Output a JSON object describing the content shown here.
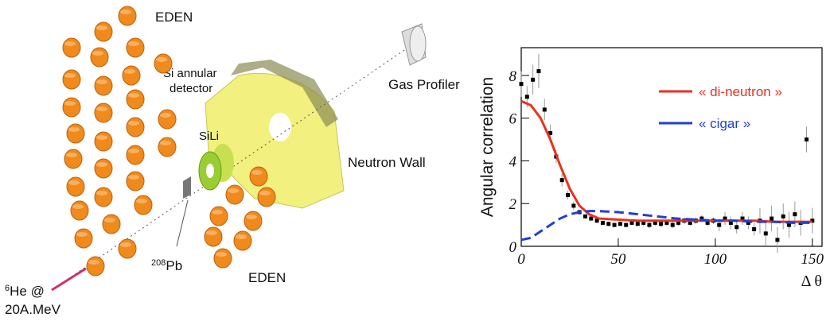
{
  "diagram": {
    "labels": {
      "eden_top": "EDEN",
      "si_annular": "Si annular",
      "detector": "detector",
      "sili": "SiLi",
      "gas_profiler": "Gas Profiler",
      "neutron_wall": "Neutron Wall",
      "pb_mass": "208",
      "pb": "Pb",
      "eden_bottom": "EDEN",
      "he_mass": "6",
      "he": "He @",
      "energy": "20A.MeV"
    }
  },
  "chart_data": {
    "type": "line",
    "y_label": "Angular correlation",
    "x_label": "Δ θ",
    "xlim": [
      0,
      155
    ],
    "ylim": [
      0,
      9.3
    ],
    "xticks": [
      0,
      50,
      100,
      150
    ],
    "yticks": [
      0,
      2,
      4,
      6,
      8
    ],
    "x": [
      0,
      5,
      10,
      15,
      20,
      25,
      30,
      35,
      40,
      50,
      60,
      70,
      80,
      90,
      100,
      110,
      120,
      130,
      140,
      150
    ],
    "series": [
      {
        "name": "« di-neutron »",
        "color": "#e8321e",
        "dash": false,
        "values": [
          6.8,
          6.6,
          6.0,
          5.0,
          3.8,
          2.7,
          1.9,
          1.5,
          1.3,
          1.25,
          1.2,
          1.2,
          1.2,
          1.2,
          1.2,
          1.2,
          1.2,
          1.15,
          1.15,
          1.15
        ]
      },
      {
        "name": "« cigar »",
        "color": "#1f3fd6",
        "dash": true,
        "values": [
          0.3,
          0.4,
          0.7,
          1.0,
          1.3,
          1.5,
          1.6,
          1.65,
          1.65,
          1.6,
          1.5,
          1.4,
          1.3,
          1.25,
          1.2,
          1.2,
          1.15,
          1.15,
          1.1,
          1.1
        ]
      }
    ],
    "points": {
      "color": "#000000",
      "x": [
        0,
        3,
        6,
        9,
        12,
        15,
        18,
        21,
        24,
        27,
        30,
        33,
        36,
        39,
        42,
        45,
        48,
        51,
        54,
        57,
        60,
        63,
        66,
        69,
        72,
        75,
        78,
        81,
        84,
        87,
        90,
        93,
        96,
        99,
        102,
        105,
        108,
        111,
        114,
        117,
        120,
        123,
        126,
        129,
        132,
        135,
        138,
        141,
        144,
        147,
        150
      ],
      "values": [
        7.6,
        7.0,
        7.8,
        8.2,
        6.4,
        5.3,
        4.2,
        3.1,
        2.4,
        1.9,
        1.6,
        1.4,
        1.3,
        1.2,
        1.1,
        1.05,
        1.0,
        1.05,
        1.0,
        1.1,
        1.05,
        1.1,
        1.0,
        1.1,
        1.05,
        1.1,
        1.0,
        1.1,
        1.2,
        1.1,
        1.2,
        1.3,
        1.1,
        1.2,
        1.0,
        1.3,
        1.1,
        0.9,
        1.3,
        1.1,
        0.8,
        1.2,
        0.6,
        1.3,
        0.3,
        1.4,
        1.0,
        1.5,
        1.1,
        5.0,
        1.2
      ],
      "errors": [
        0.6,
        0.5,
        0.7,
        0.8,
        0.5,
        0.4,
        0.3,
        0.3,
        0.2,
        0.2,
        0.1,
        0.1,
        0.1,
        0.1,
        0.1,
        0.1,
        0.1,
        0.1,
        0.1,
        0.1,
        0.1,
        0.15,
        0.15,
        0.15,
        0.15,
        0.15,
        0.15,
        0.15,
        0.15,
        0.15,
        0.15,
        0.15,
        0.15,
        0.15,
        0.3,
        0.3,
        0.3,
        0.3,
        0.3,
        0.3,
        0.3,
        0.6,
        0.6,
        0.6,
        0.6,
        0.6,
        0.6,
        0.6,
        0.6,
        0.6,
        0.6
      ]
    }
  }
}
